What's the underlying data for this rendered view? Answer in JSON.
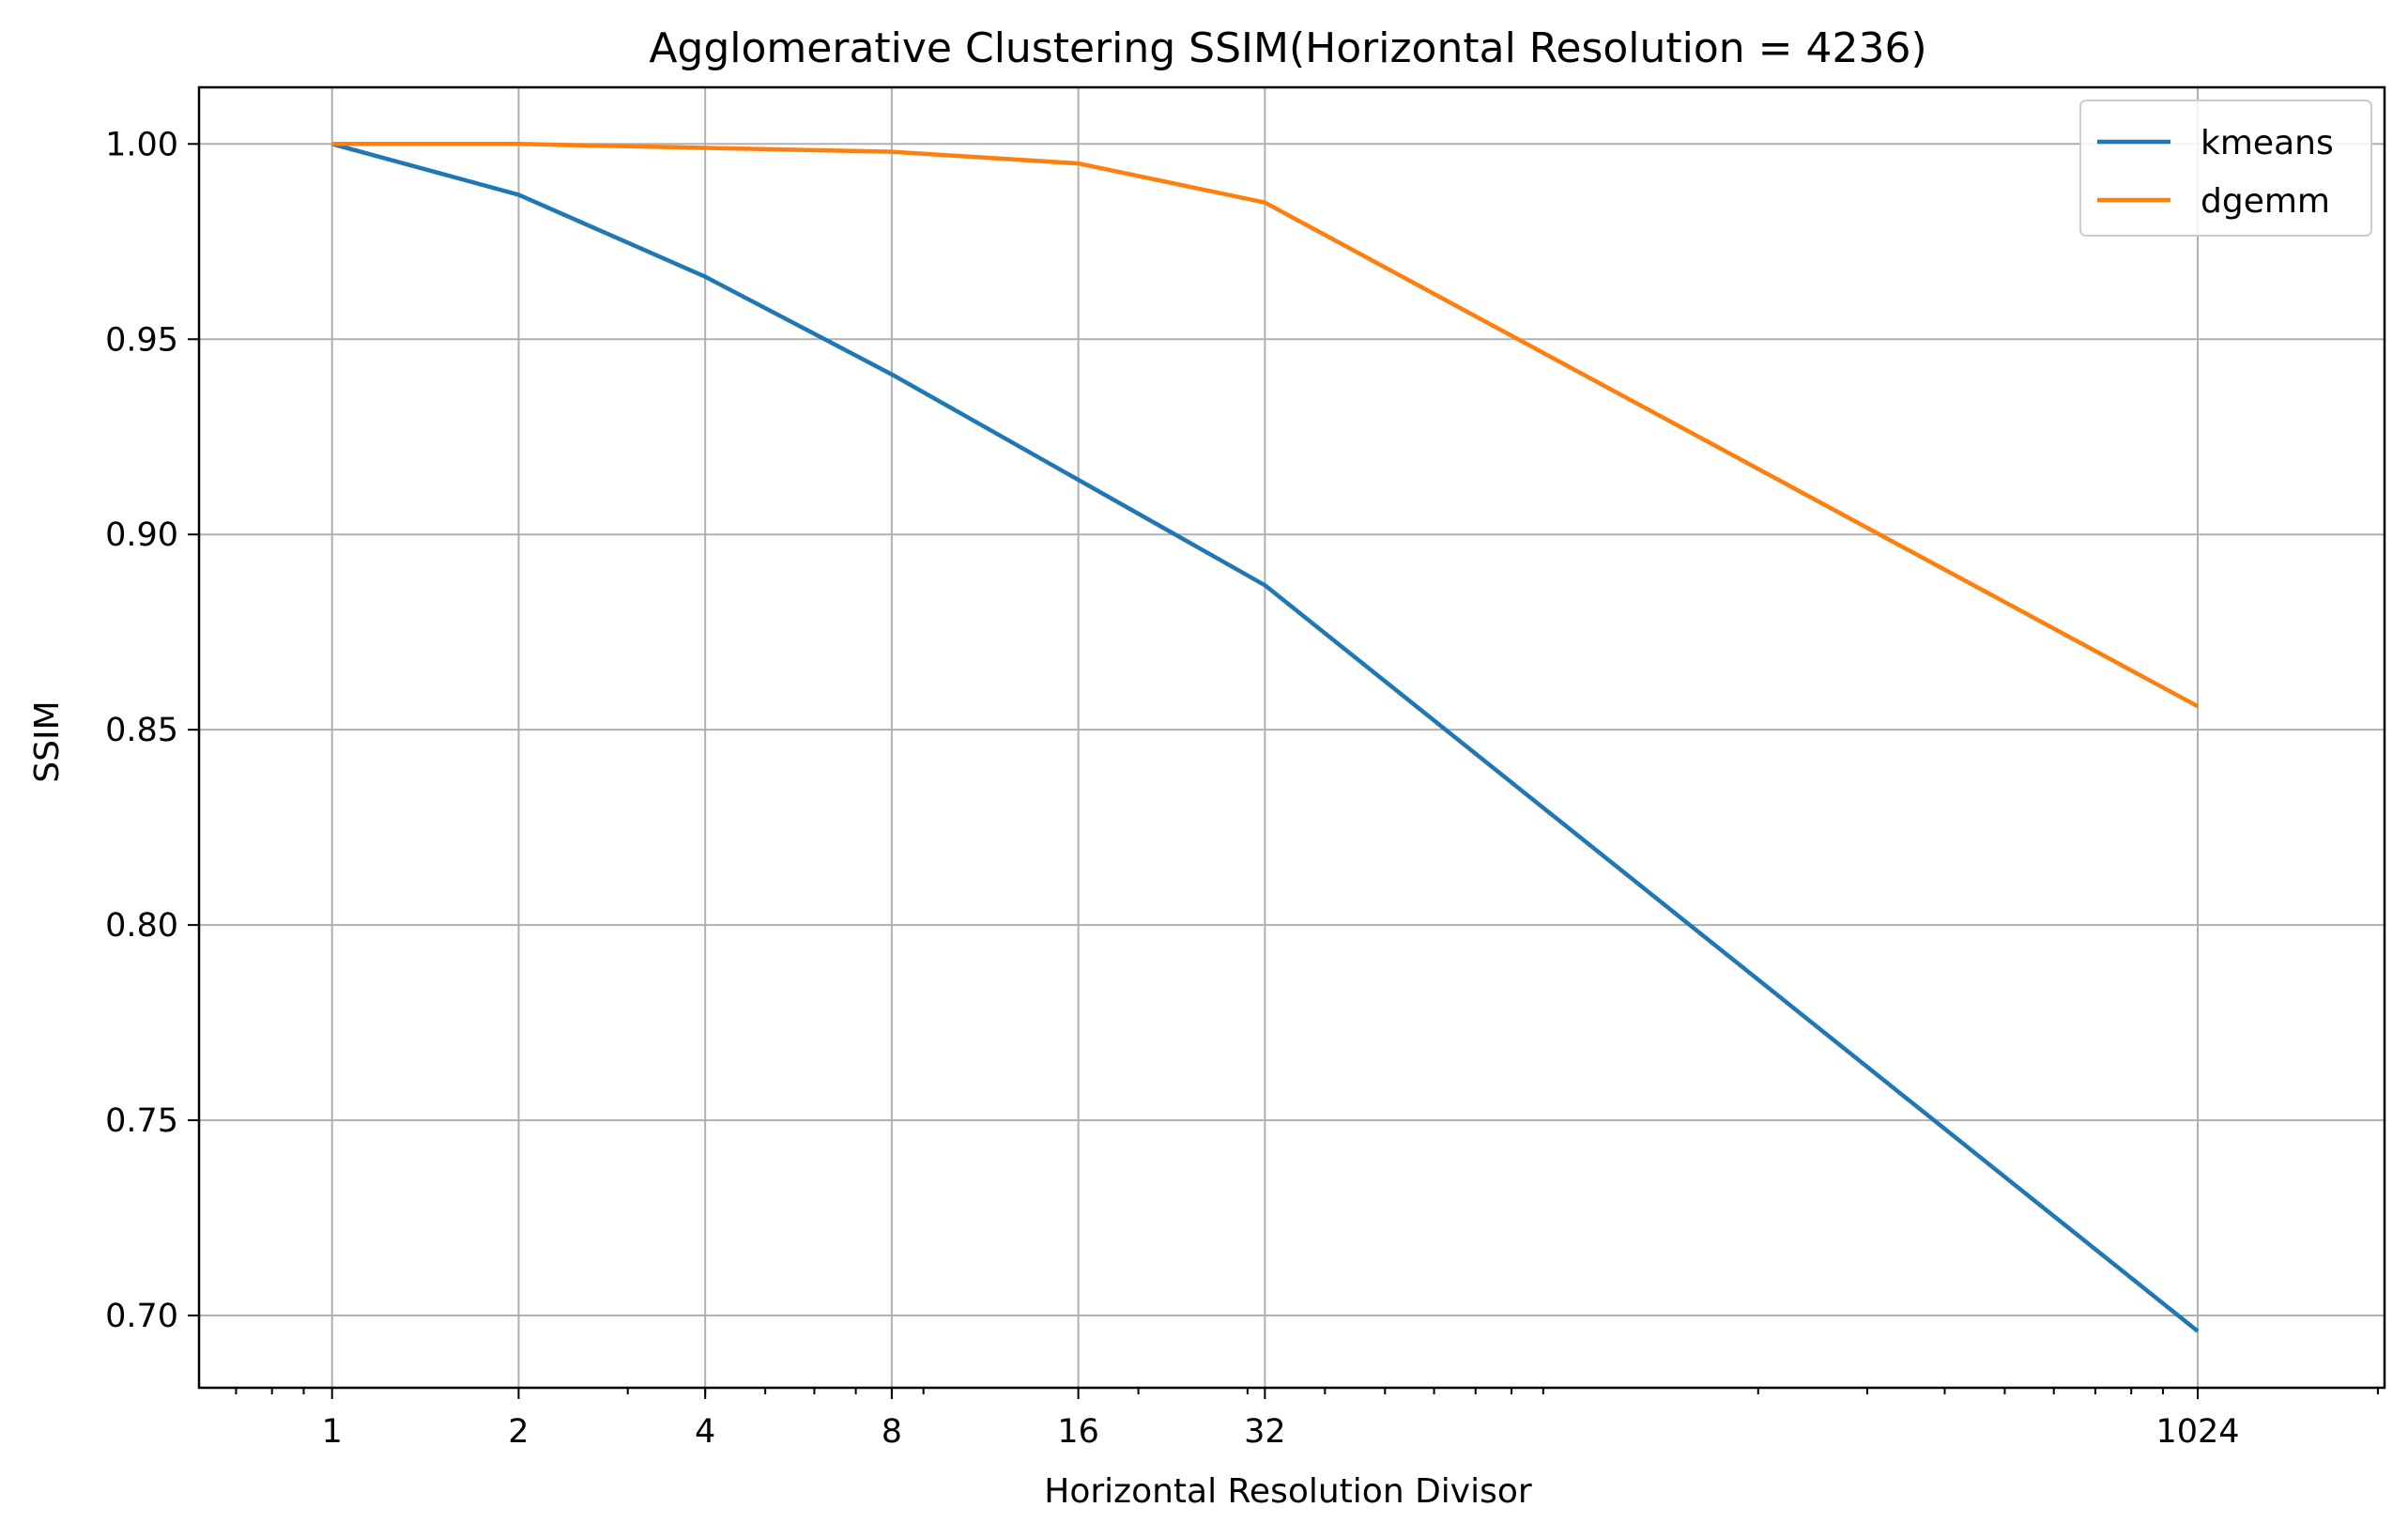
{
  "chart_data": {
    "type": "line",
    "title": "Agglomerative Clustering SSIM(Horizontal Resolution = 4236)",
    "xlabel": "Horizontal Resolution Divisor",
    "ylabel": "SSIM",
    "x_scale": "log2",
    "xlim": [
      0.61,
      2050
    ],
    "ylim": [
      0.6815,
      1.0145
    ],
    "x": [
      1,
      2,
      4,
      8,
      16,
      32,
      1024
    ],
    "x_tick_labels": [
      "1",
      "2",
      "4",
      "8",
      "16",
      "32",
      "1024"
    ],
    "y_ticks": [
      0.7,
      0.75,
      0.8,
      0.85,
      0.9,
      0.95,
      1.0
    ],
    "y_tick_labels": [
      "0.70",
      "0.75",
      "0.80",
      "0.85",
      "0.90",
      "0.95",
      "1.00"
    ],
    "grid": true,
    "legend_position": "top-right",
    "series": [
      {
        "name": "kmeans",
        "color": "#1f77b4",
        "values": [
          1.0,
          0.987,
          0.966,
          0.941,
          0.914,
          0.887,
          0.696
        ]
      },
      {
        "name": "dgemm",
        "color": "#ff7f0e",
        "values": [
          1.0,
          1.0,
          0.999,
          0.998,
          0.995,
          0.985,
          0.856
        ]
      }
    ]
  }
}
